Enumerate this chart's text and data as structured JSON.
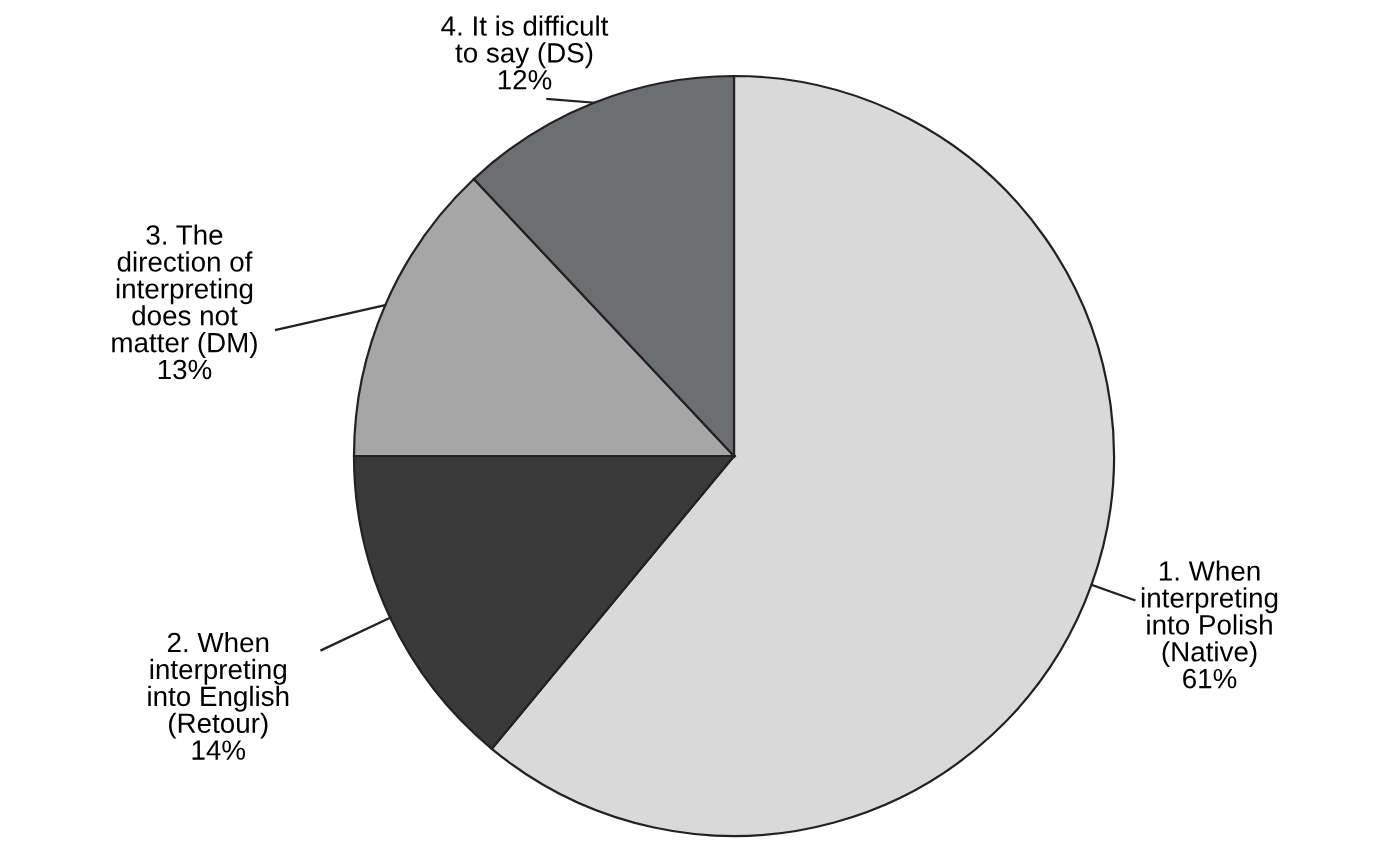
{
  "chart_data": {
    "type": "pie",
    "categories": [
      "1. When\ninterpreting\ninto Polish\n(Native)",
      "2. When\ninterpreting\ninto English\n(Retour)",
      "3. The\ndirection of\ninterpreting\ndoes not\nmatter (DM)",
      "4. It is difficult\nto say (DS)"
    ],
    "values": [
      61,
      14,
      13,
      12
    ],
    "value_labels": [
      "61%",
      "14%",
      "13%",
      "12%"
    ],
    "colors": [
      "#d9d9d9",
      "#3a3a3a",
      "#a6a6a6",
      "#6d6e71"
    ]
  }
}
